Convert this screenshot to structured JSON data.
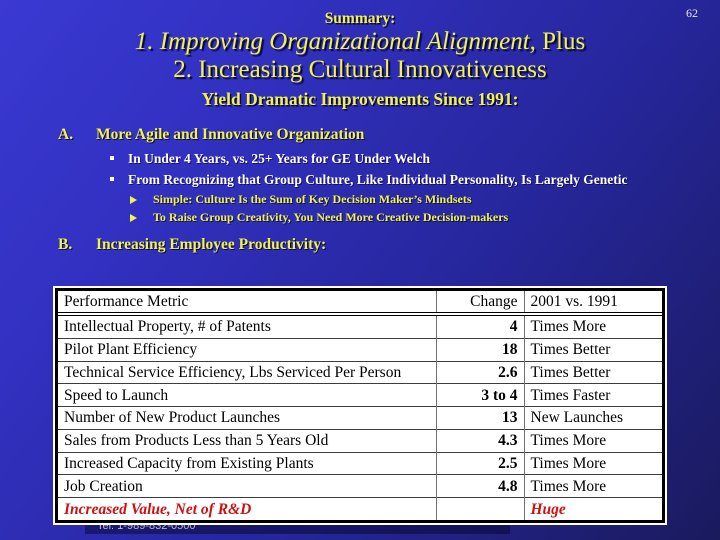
{
  "page_number": "62",
  "header": {
    "kicker": "Summary:",
    "title_line1_italic": "1. Improving Organizational Alignment,",
    "title_line1_plain": " Plus",
    "title_line2": "2. Increasing Cultural Innovativeness",
    "subtitle": "Yield Dramatic Improvements Since 1991:"
  },
  "outline": {
    "item_a": {
      "letter": "A.",
      "text": "More Agile and Innovative Organization"
    },
    "bullets": [
      {
        "icon": "square-bullet",
        "text": "In Under 4 Years, vs. 25+ Years for GE Under Welch"
      },
      {
        "icon": "square-bullet",
        "text": "From Recognizing that Group Culture, Like Individual Personality, Is Largely Genetic"
      }
    ],
    "sub_bullets": [
      {
        "icon": "arrow-bullet",
        "text": "Simple: Culture Is the Sum of Key Decision Maker’s Mindsets"
      },
      {
        "icon": "arrow-bullet",
        "text": "To Raise Group Creativity, You Need More Creative Decision-makers"
      }
    ],
    "item_b": {
      "letter": "B.",
      "text": "Increasing Employee Productivity:"
    }
  },
  "table": {
    "headers": [
      "Performance Metric",
      "Change",
      "2001 vs. 1991"
    ],
    "rows": [
      [
        "Intellectual Property, # of Patents",
        "4",
        "Times More"
      ],
      [
        "Pilot Plant Efficiency",
        "18",
        "Times Better"
      ],
      [
        "Technical Service Efficiency, Lbs Serviced Per Person",
        "2.6",
        "Times Better"
      ],
      [
        "Speed to Launch",
        "3 to 4",
        "Times Faster"
      ],
      [
        "Number of New Product Launches",
        "13",
        "New Launches"
      ],
      [
        "Sales from Products Less than 5 Years Old",
        "4.3",
        "Times More"
      ],
      [
        "Increased Capacity from Existing Plants",
        "2.5",
        "Times More"
      ],
      [
        "Job Creation",
        "4.8",
        "Times More"
      ]
    ],
    "highlight_row": [
      "Increased Value, Net of R&D",
      "",
      "Huge"
    ]
  },
  "footer": {
    "tel": "Tel: 1-989-832-0500"
  },
  "colors": {
    "accent_yellow": "#f2f24c",
    "highlight_red": "#cc1111",
    "background_top": "#3a39d2",
    "background_bottom": "#1a1a5e",
    "table_background": "#ffffff"
  }
}
